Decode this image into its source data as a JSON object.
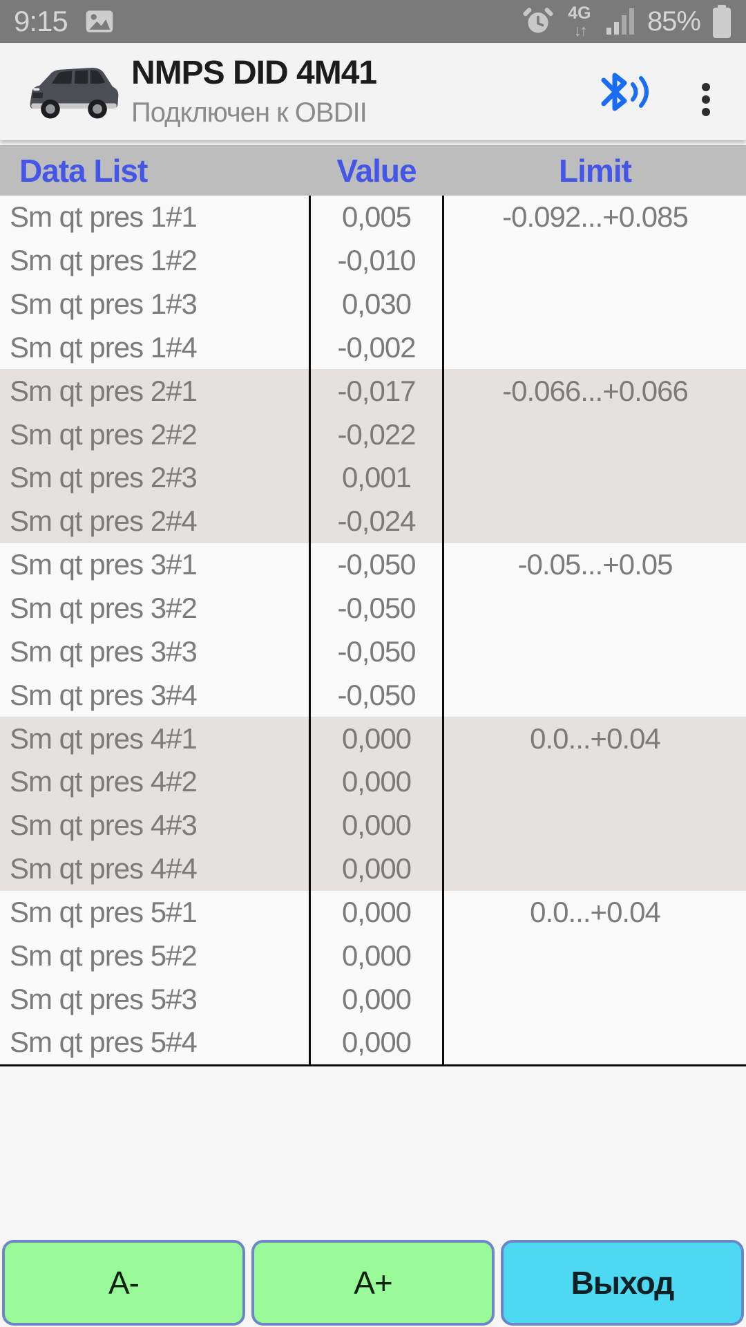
{
  "status_bar": {
    "time": "9:15",
    "network_label": "4G",
    "network_arrows": "↓↑",
    "battery_percent": "85%"
  },
  "header": {
    "title": "NMPS DID 4M41",
    "subtitle": "Подключен к OBDII"
  },
  "table": {
    "columns": [
      "Data List",
      "Value",
      "Limit"
    ],
    "rows": [
      {
        "name": "Sm qt pres 1#1",
        "value": "0,005",
        "limit": "-0.092...+0.085",
        "group": 1
      },
      {
        "name": "Sm qt pres 1#2",
        "value": "-0,010",
        "limit": "",
        "group": 1
      },
      {
        "name": "Sm qt pres 1#3",
        "value": "0,030",
        "limit": "",
        "group": 1
      },
      {
        "name": "Sm qt pres 1#4",
        "value": "-0,002",
        "limit": "",
        "group": 1
      },
      {
        "name": "Sm qt pres 2#1",
        "value": "-0,017",
        "limit": "-0.066...+0.066",
        "group": 2
      },
      {
        "name": "Sm qt pres 2#2",
        "value": "-0,022",
        "limit": "",
        "group": 2
      },
      {
        "name": "Sm qt pres 2#3",
        "value": "0,001",
        "limit": "",
        "group": 2
      },
      {
        "name": "Sm qt pres 2#4",
        "value": "-0,024",
        "limit": "",
        "group": 2
      },
      {
        "name": "Sm qt pres 3#1",
        "value": "-0,050",
        "limit": "-0.05...+0.05",
        "group": 3
      },
      {
        "name": "Sm qt pres 3#2",
        "value": "-0,050",
        "limit": "",
        "group": 3
      },
      {
        "name": "Sm qt pres 3#3",
        "value": "-0,050",
        "limit": "",
        "group": 3
      },
      {
        "name": "Sm qt pres 3#4",
        "value": "-0,050",
        "limit": "",
        "group": 3
      },
      {
        "name": "Sm qt pres 4#1",
        "value": "0,000",
        "limit": "0.0...+0.04",
        "group": 4
      },
      {
        "name": "Sm qt pres 4#2",
        "value": "0,000",
        "limit": "",
        "group": 4
      },
      {
        "name": "Sm qt pres 4#3",
        "value": "0,000",
        "limit": "",
        "group": 4
      },
      {
        "name": "Sm qt pres 4#4",
        "value": "0,000",
        "limit": "",
        "group": 4
      },
      {
        "name": "Sm qt pres 5#1",
        "value": "0,000",
        "limit": "0.0...+0.04",
        "group": 5
      },
      {
        "name": "Sm qt pres 5#2",
        "value": "0,000",
        "limit": "",
        "group": 5
      },
      {
        "name": "Sm qt pres 5#3",
        "value": "0,000",
        "limit": "",
        "group": 5
      },
      {
        "name": "Sm qt pres 5#4",
        "value": "0,000",
        "limit": "",
        "group": 5
      }
    ]
  },
  "buttons": [
    {
      "label": "A-"
    },
    {
      "label": "A+"
    },
    {
      "label": "Выход"
    }
  ],
  "icons": {
    "image": "image-icon",
    "alarm": "alarm-icon",
    "signal": "signal-strength-icon",
    "battery": "battery-icon",
    "bluetooth": "bluetooth-connected-icon",
    "menu": "overflow-menu-icon",
    "car": "vehicle-photo"
  },
  "colors": {
    "header_accent": "#4456e8",
    "bluetooth_blue": "#1a6df2",
    "button_green": "#9afa9a",
    "button_cyan": "#4ed9f2",
    "button_border": "#6e86c6",
    "row_band_gray": "#e4e1de",
    "table_header_bg": "#bdbdbd",
    "statusbar_bg": "#7a7a7a"
  }
}
